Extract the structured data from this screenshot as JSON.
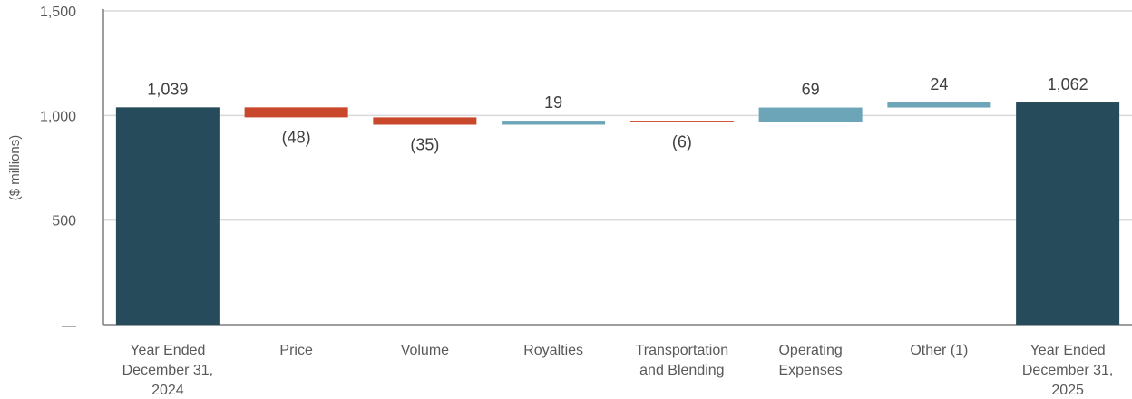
{
  "chart_data": {
    "type": "bar",
    "subtype": "waterfall",
    "title": "",
    "xlabel": "",
    "ylabel": "($ millions)",
    "ylim": [
      0,
      1500
    ],
    "yticks": [
      {
        "value": 0,
        "label": "—"
      },
      {
        "value": 500,
        "label": "500"
      },
      {
        "value": 1000,
        "label": "1,000"
      },
      {
        "value": 1500,
        "label": "1,500"
      }
    ],
    "grid": true,
    "categories": [
      [
        "Year Ended",
        "December 31,",
        "2024"
      ],
      [
        "Price"
      ],
      [
        "Volume"
      ],
      [
        "Royalties"
      ],
      [
        "Transportation",
        "and Blending"
      ],
      [
        "Operating",
        "Expenses"
      ],
      [
        "Other (1)"
      ],
      [
        "Year Ended",
        "December 31,",
        "2025"
      ]
    ],
    "bars": [
      {
        "kind": "total",
        "start": 0,
        "end": 1039,
        "label": "1,039"
      },
      {
        "kind": "decrease",
        "start": 1039,
        "end": 991,
        "label": "(48)"
      },
      {
        "kind": "decrease",
        "start": 991,
        "end": 956,
        "label": "(35)"
      },
      {
        "kind": "increase",
        "start": 956,
        "end": 975,
        "label": "19"
      },
      {
        "kind": "decrease",
        "start": 975,
        "end": 969,
        "label": "(6)"
      },
      {
        "kind": "increase",
        "start": 969,
        "end": 1038,
        "label": "69"
      },
      {
        "kind": "increase",
        "start": 1038,
        "end": 1062,
        "label": "24"
      },
      {
        "kind": "total",
        "start": 0,
        "end": 1062,
        "label": "1,062"
      }
    ],
    "colors": {
      "total": "#264B5A",
      "decrease": "#C9472A",
      "increase": "#6CA4B8",
      "grid": "#D9D9D9",
      "axis": "#7F7F7F"
    }
  }
}
